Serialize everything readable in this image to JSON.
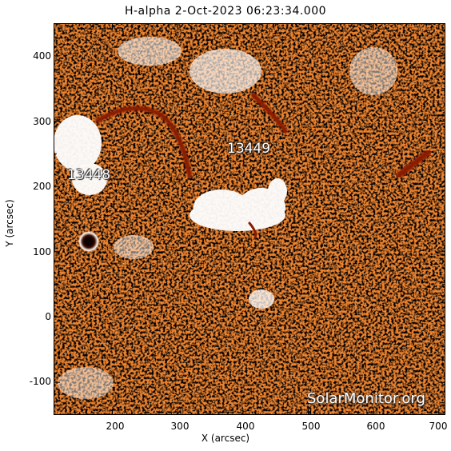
{
  "title": "H-alpha   2-Oct-2023 06:23:34.000",
  "axes": {
    "xlabel": "X (arcsec)",
    "ylabel": "Y (arcsec)",
    "x_range": [
      110,
      710
    ],
    "y_range": [
      -150,
      450
    ],
    "x_ticks": [
      "200",
      "300",
      "400",
      "500",
      "600",
      "700"
    ],
    "y_ticks": [
      "400",
      "300",
      "200",
      "100",
      "0",
      "-100"
    ]
  },
  "regions": [
    {
      "label": "13448"
    },
    {
      "label": "13449"
    }
  ],
  "credit": "SolarMonitor.org",
  "colors": {
    "base": "#e8731c",
    "bright": "#ffffff",
    "dark": "#1a0800",
    "filament": "#8a1a00"
  }
}
